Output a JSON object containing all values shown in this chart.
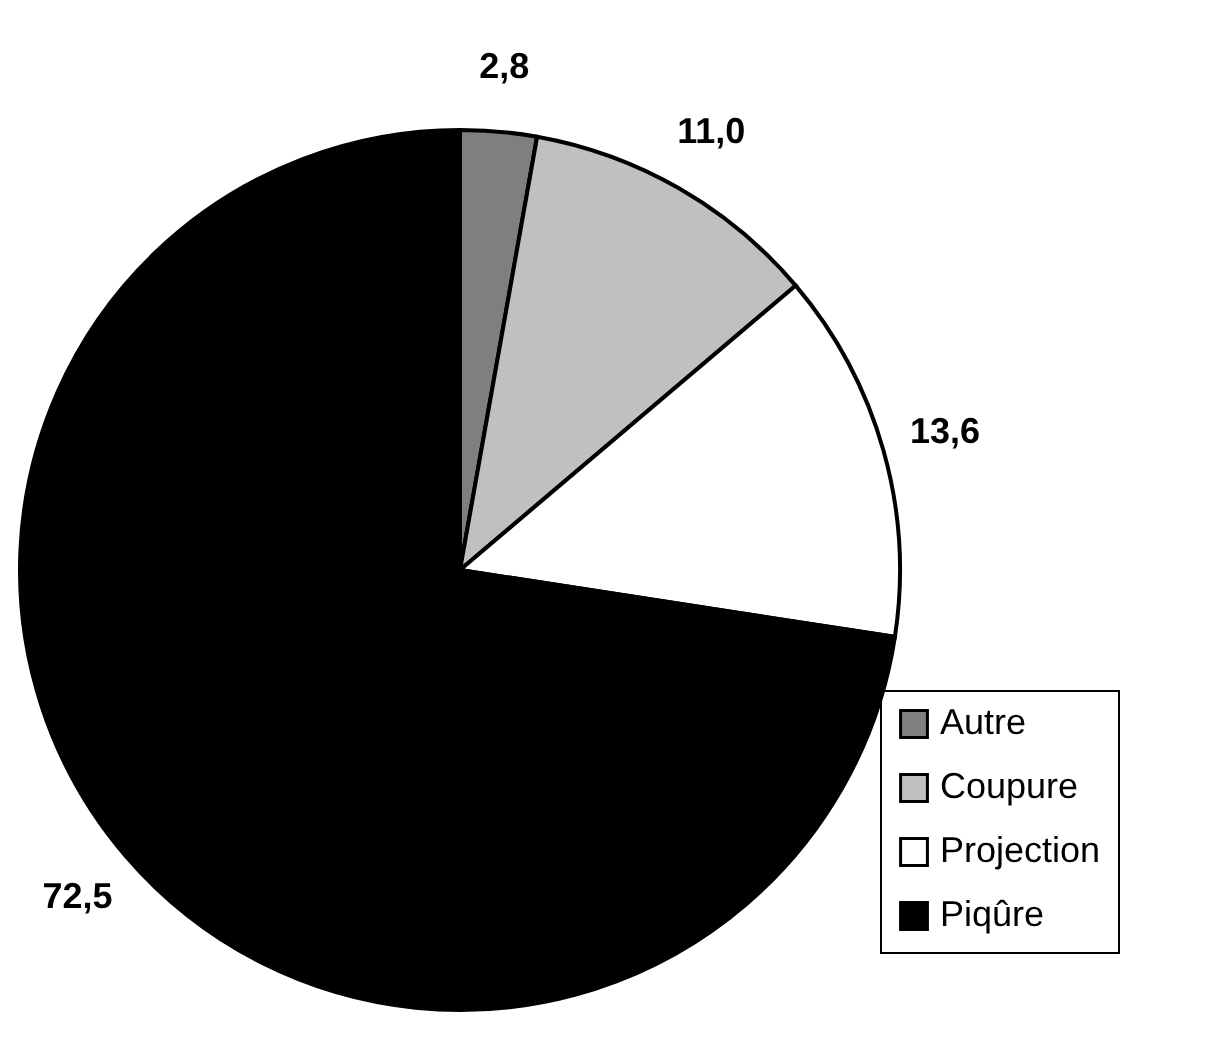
{
  "chart_data": {
    "type": "pie",
    "categories": [
      "Autre",
      "Coupure",
      "Projection",
      "Piqûre"
    ],
    "values": [
      2.8,
      11.0,
      13.6,
      72.5
    ],
    "value_labels": [
      "2,8",
      "11,0",
      "13,6",
      "72,5"
    ],
    "colors": [
      "#7f7f7f",
      "#c0c0c0",
      "#ffffff",
      "#000000"
    ],
    "legend": "bottom right"
  }
}
